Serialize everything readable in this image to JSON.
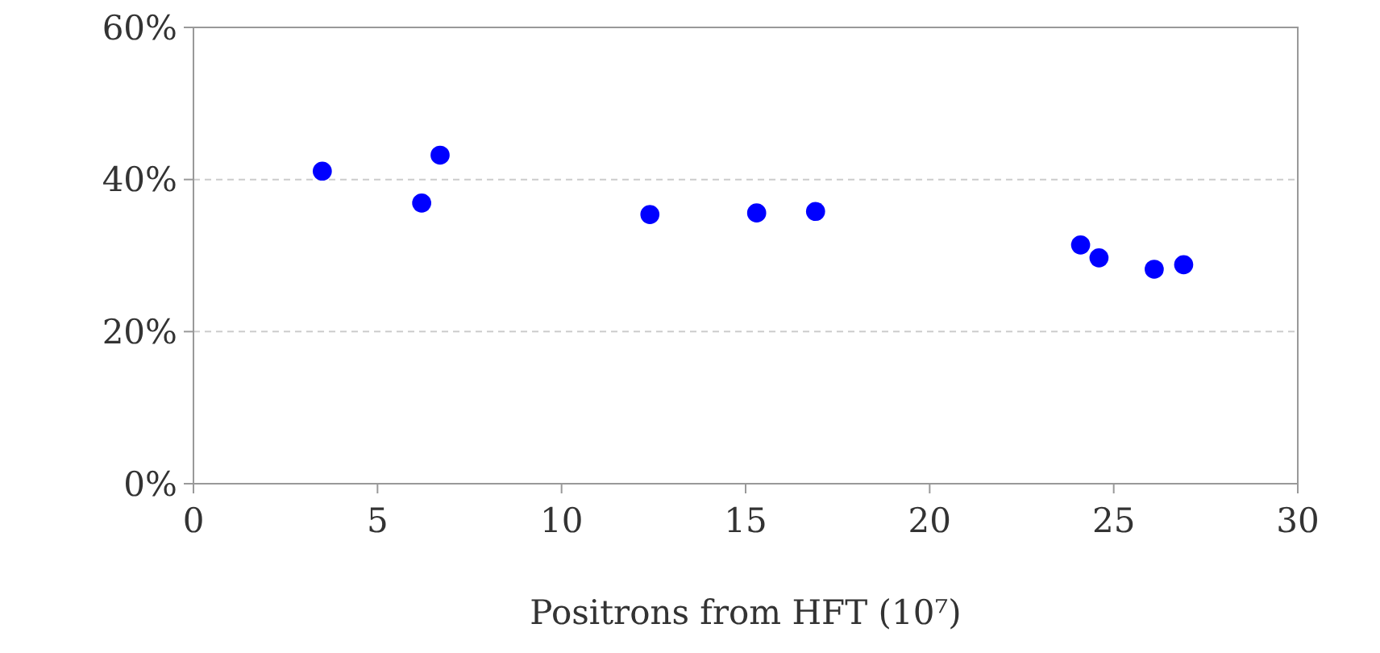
{
  "chart_data": {
    "type": "scatter",
    "xlabel": "Positrons from HFT (10⁷)",
    "x": [
      3.5,
      6.2,
      6.7,
      12.4,
      15.3,
      16.9,
      24.1,
      24.6,
      26.1,
      26.9
    ],
    "series": [
      {
        "color": "#0000ff",
        "values": [
          41.1,
          36.9,
          43.2,
          35.4,
          35.6,
          35.8,
          31.4,
          29.7,
          28.2,
          28.8
        ]
      }
    ],
    "xlim": [
      0,
      30
    ],
    "xticks": [
      0,
      5,
      10,
      15,
      20,
      25,
      30
    ],
    "ylim": [
      0,
      60
    ],
    "yticks": [
      {
        "value": 0,
        "label": "0%"
      },
      {
        "value": 20,
        "label": "20%"
      },
      {
        "value": 40,
        "label": "40%"
      },
      {
        "value": 60,
        "label": "60%"
      }
    ],
    "grid": "y",
    "marker": "circle"
  }
}
